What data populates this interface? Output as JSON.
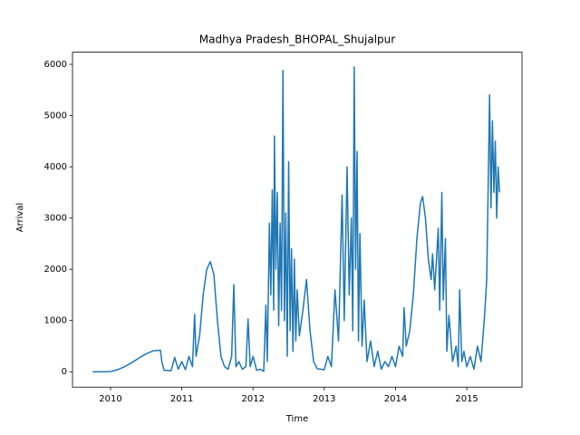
{
  "chart_data": {
    "type": "line",
    "title": "Madhya Pradesh_BHOPAL_Shujalpur",
    "xlabel": "Time",
    "ylabel": "Arrival",
    "x": [
      2009.75,
      2009.9,
      2010.0,
      2010.1,
      2010.2,
      2010.3,
      2010.4,
      2010.5,
      2010.6,
      2010.7,
      2010.72,
      2010.75,
      2010.85,
      2010.9,
      2010.95,
      2011.0,
      2011.05,
      2011.1,
      2011.15,
      2011.18,
      2011.2,
      2011.25,
      2011.3,
      2011.35,
      2011.4,
      2011.45,
      2011.5,
      2011.55,
      2011.6,
      2011.65,
      2011.7,
      2011.73,
      2011.76,
      2011.8,
      2011.85,
      2011.9,
      2011.93,
      2011.96,
      2012.0,
      2012.05,
      2012.1,
      2012.15,
      2012.18,
      2012.2,
      2012.23,
      2012.25,
      2012.27,
      2012.29,
      2012.3,
      2012.32,
      2012.34,
      2012.36,
      2012.38,
      2012.4,
      2012.42,
      2012.44,
      2012.46,
      2012.48,
      2012.5,
      2012.52,
      2012.54,
      2012.56,
      2012.58,
      2012.6,
      2012.62,
      2012.65,
      2012.7,
      2012.75,
      2012.8,
      2012.85,
      2012.9,
      2012.95,
      2013.0,
      2013.05,
      2013.1,
      2013.15,
      2013.2,
      2013.25,
      2013.28,
      2013.32,
      2013.35,
      2013.38,
      2013.4,
      2013.42,
      2013.44,
      2013.46,
      2013.48,
      2013.5,
      2013.53,
      2013.56,
      2013.6,
      2013.65,
      2013.7,
      2013.75,
      2013.8,
      2013.85,
      2013.9,
      2013.95,
      2014.0,
      2014.05,
      2014.1,
      2014.12,
      2014.15,
      2014.2,
      2014.25,
      2014.3,
      2014.35,
      2014.38,
      2014.42,
      2014.46,
      2014.5,
      2014.52,
      2014.55,
      2014.6,
      2014.62,
      2014.65,
      2014.67,
      2014.7,
      2014.72,
      2014.75,
      2014.8,
      2014.85,
      2014.88,
      2014.9,
      2014.93,
      2014.96,
      2015.0,
      2015.05,
      2015.1,
      2015.15,
      2015.2,
      2015.25,
      2015.28,
      2015.3,
      2015.32,
      2015.34,
      2015.36,
      2015.38,
      2015.4,
      2015.42,
      2015.44,
      2015.46
    ],
    "series": [
      {
        "color": "#1f77b4",
        "values": [
          0,
          0,
          5,
          40,
          100,
          180,
          270,
          350,
          410,
          420,
          200,
          30,
          20,
          280,
          50,
          200,
          40,
          300,
          100,
          1120,
          300,
          700,
          1500,
          2000,
          2150,
          1900,
          1000,
          300,
          100,
          50,
          300,
          1700,
          100,
          200,
          50,
          100,
          1030,
          100,
          300,
          30,
          50,
          10,
          1300,
          200,
          2900,
          1500,
          3550,
          1200,
          4600,
          2000,
          3500,
          900,
          2900,
          1200,
          5880,
          1000,
          3100,
          300,
          4100,
          800,
          2400,
          400,
          2200,
          600,
          1600,
          700,
          1200,
          1800,
          800,
          200,
          60,
          50,
          40,
          300,
          100,
          1600,
          600,
          3450,
          1000,
          4000,
          1500,
          3000,
          800,
          5950,
          2000,
          4300,
          600,
          2700,
          500,
          1400,
          200,
          600,
          100,
          400,
          50,
          200,
          100,
          300,
          100,
          500,
          300,
          1250,
          500,
          800,
          1500,
          2600,
          3300,
          3420,
          3000,
          2200,
          1800,
          2300,
          1600,
          2800,
          1200,
          3500,
          1400,
          2600,
          400,
          1100,
          200,
          500,
          100,
          1600,
          200,
          400,
          100,
          300,
          50,
          500,
          200,
          1100,
          1800,
          3600,
          5400,
          3200,
          4900,
          3500,
          4500,
          3000,
          4000,
          3500
        ]
      }
    ],
    "xlim": [
      2009.466,
      2015.775
    ],
    "xticks": [
      2010,
      2011,
      2012,
      2013,
      2014,
      2015
    ],
    "ylim": [
      -300,
      6237
    ],
    "yticks": [
      0,
      1000,
      2000,
      3000,
      4000,
      5000,
      6000
    ]
  }
}
